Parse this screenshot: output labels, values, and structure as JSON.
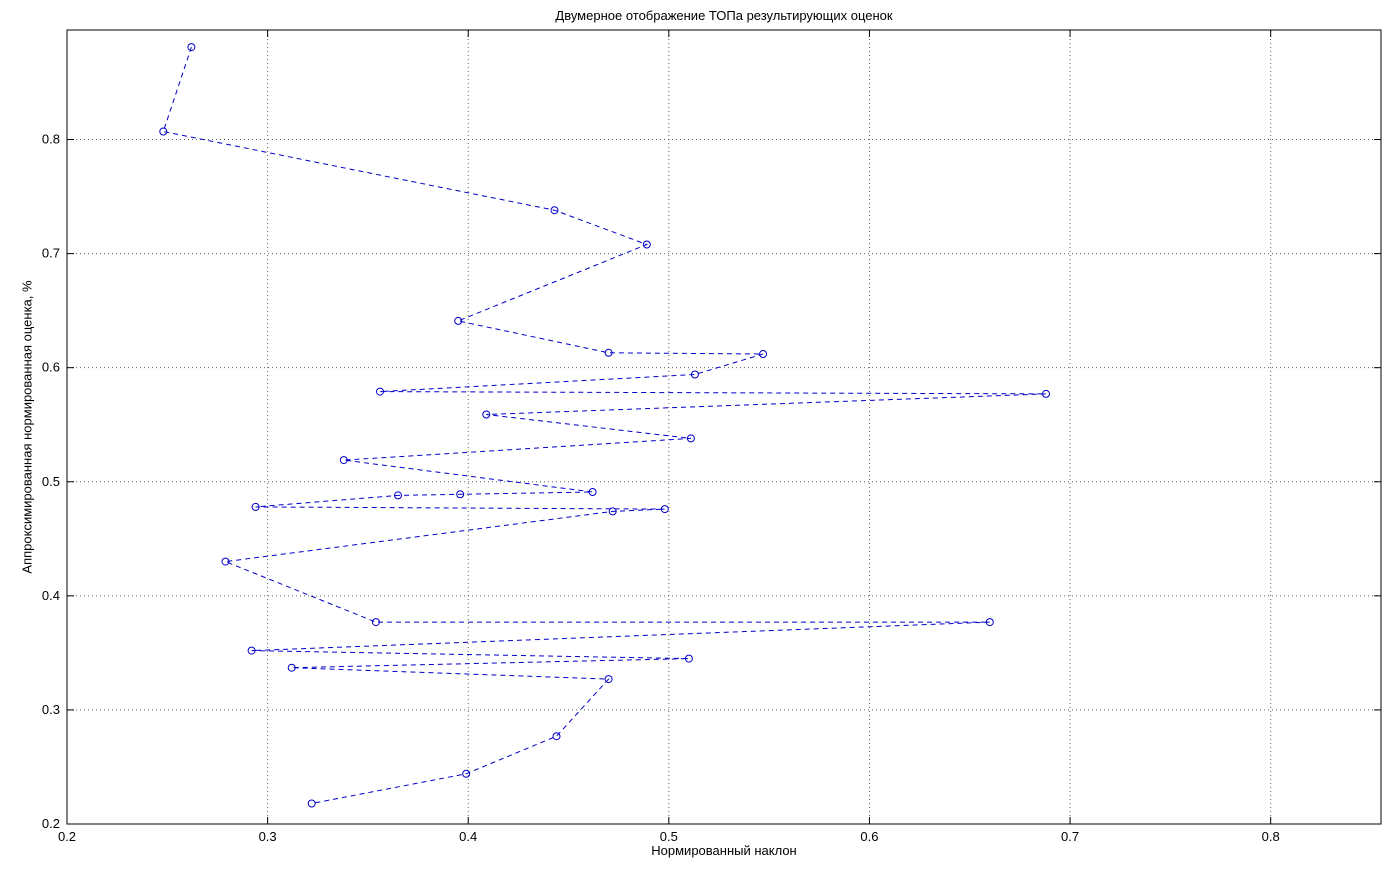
{
  "chart_data": {
    "type": "line",
    "title": "Двумерное отображение ТОПа результирующих оценок",
    "xlabel": "Нормированный наклон",
    "ylabel": "Аппроксимированная нормированная оценка, %",
    "xlim": [
      0.2,
      0.855
    ],
    "ylim": [
      0.2,
      0.896
    ],
    "xticks": [
      0.2,
      0.3,
      0.4,
      0.5,
      0.6,
      0.7,
      0.8
    ],
    "yticks": [
      0.2,
      0.3,
      0.4,
      0.5,
      0.6,
      0.7,
      0.8
    ],
    "grid": true,
    "legend": "none",
    "line_style": "dashed",
    "marker": "circle-open",
    "line_color": "#0000C8",
    "grid_color": "#606060",
    "axis_color": "#000000",
    "background": "#FFFFFF",
    "points": [
      [
        0.262,
        0.881
      ],
      [
        0.248,
        0.807
      ],
      [
        0.443,
        0.738
      ],
      [
        0.489,
        0.708
      ],
      [
        0.395,
        0.641
      ],
      [
        0.47,
        0.613
      ],
      [
        0.547,
        0.612
      ],
      [
        0.513,
        0.594
      ],
      [
        0.356,
        0.579
      ],
      [
        0.688,
        0.577
      ],
      [
        0.409,
        0.559
      ],
      [
        0.511,
        0.538
      ],
      [
        0.338,
        0.519
      ],
      [
        0.462,
        0.491
      ],
      [
        0.396,
        0.489
      ],
      [
        0.365,
        0.488
      ],
      [
        0.294,
        0.478
      ],
      [
        0.498,
        0.476
      ],
      [
        0.472,
        0.474
      ],
      [
        0.279,
        0.43
      ],
      [
        0.354,
        0.377
      ],
      [
        0.66,
        0.377
      ],
      [
        0.292,
        0.352
      ],
      [
        0.51,
        0.345
      ],
      [
        0.312,
        0.337
      ],
      [
        0.47,
        0.327
      ],
      [
        0.444,
        0.277
      ],
      [
        0.399,
        0.244
      ],
      [
        0.322,
        0.218
      ]
    ]
  }
}
